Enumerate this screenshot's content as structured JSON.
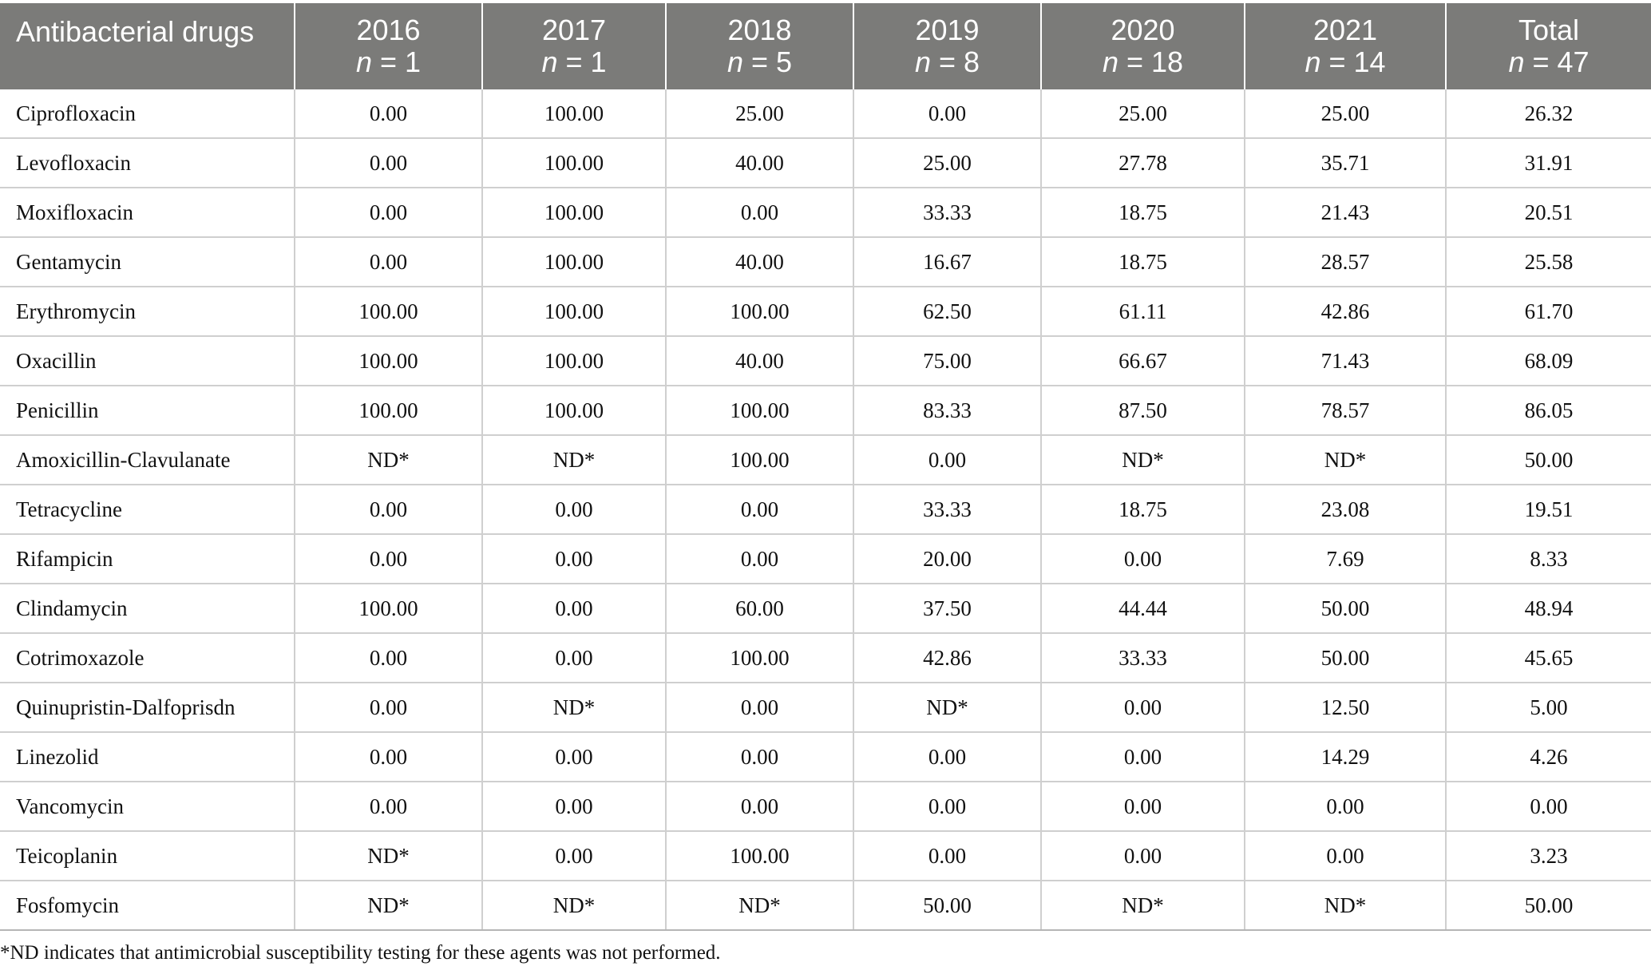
{
  "table": {
    "columns": [
      {
        "label": "Antibacterial drugs",
        "n": null
      },
      {
        "label": "2016",
        "n": "1"
      },
      {
        "label": "2017",
        "n": "1"
      },
      {
        "label": "2018",
        "n": "5"
      },
      {
        "label": "2019",
        "n": "8"
      },
      {
        "label": "2020",
        "n": "18"
      },
      {
        "label": "2021",
        "n": "14"
      },
      {
        "label": "Total",
        "n": "47"
      }
    ],
    "rows": [
      [
        "Ciprofloxacin",
        "0.00",
        "100.00",
        "25.00",
        "0.00",
        "25.00",
        "25.00",
        "26.32"
      ],
      [
        "Levofloxacin",
        "0.00",
        "100.00",
        "40.00",
        "25.00",
        "27.78",
        "35.71",
        "31.91"
      ],
      [
        "Moxifloxacin",
        "0.00",
        "100.00",
        "0.00",
        "33.33",
        "18.75",
        "21.43",
        "20.51"
      ],
      [
        "Gentamycin",
        "0.00",
        "100.00",
        "40.00",
        "16.67",
        "18.75",
        "28.57",
        "25.58"
      ],
      [
        "Erythromycin",
        "100.00",
        "100.00",
        "100.00",
        "62.50",
        "61.11",
        "42.86",
        "61.70"
      ],
      [
        "Oxacillin",
        "100.00",
        "100.00",
        "40.00",
        "75.00",
        "66.67",
        "71.43",
        "68.09"
      ],
      [
        "Penicillin",
        "100.00",
        "100.00",
        "100.00",
        "83.33",
        "87.50",
        "78.57",
        "86.05"
      ],
      [
        "Amoxicillin-Clavulanate",
        "ND*",
        "ND*",
        "100.00",
        "0.00",
        "ND*",
        "ND*",
        "50.00"
      ],
      [
        "Tetracycline",
        "0.00",
        "0.00",
        "0.00",
        "33.33",
        "18.75",
        "23.08",
        "19.51"
      ],
      [
        "Rifampicin",
        "0.00",
        "0.00",
        "0.00",
        "20.00",
        "0.00",
        "7.69",
        "8.33"
      ],
      [
        "Clindamycin",
        "100.00",
        "0.00",
        "60.00",
        "37.50",
        "44.44",
        "50.00",
        "48.94"
      ],
      [
        "Cotrimoxazole",
        "0.00",
        "0.00",
        "100.00",
        "42.86",
        "33.33",
        "50.00",
        "45.65"
      ],
      [
        "Quinupristin-Dalfoprisdn",
        "0.00",
        "ND*",
        "0.00",
        "ND*",
        "0.00",
        "12.50",
        "5.00"
      ],
      [
        "Linezolid",
        "0.00",
        "0.00",
        "0.00",
        "0.00",
        "0.00",
        "14.29",
        "4.26"
      ],
      [
        "Vancomycin",
        "0.00",
        "0.00",
        "0.00",
        "0.00",
        "0.00",
        "0.00",
        "0.00"
      ],
      [
        "Teicoplanin",
        "ND*",
        "0.00",
        "100.00",
        "0.00",
        "0.00",
        "0.00",
        "3.23"
      ],
      [
        "Fosfomycin",
        "ND*",
        "ND*",
        "ND*",
        "50.00",
        "ND*",
        "ND*",
        "50.00"
      ]
    ]
  },
  "footnote": "*ND indicates that antimicrobial susceptibility testing for these agents was not performed.",
  "colors": {
    "header_bg": "#7b7b79",
    "header_text": "#ffffff",
    "grid": "#cfcfcf"
  }
}
